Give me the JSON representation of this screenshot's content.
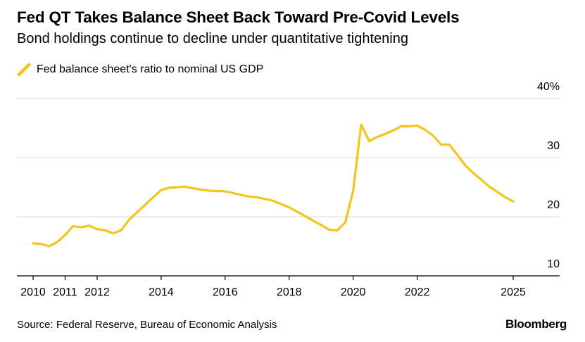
{
  "header": {
    "title": "Fed QT Takes Balance Sheet Back Toward Pre-Covid Levels",
    "subtitle": "Bond holdings continue to decline under quantitative tightening"
  },
  "legend": {
    "label": "Fed balance sheet's ratio to nominal US GDP",
    "color": "#f5c518",
    "icon": "line-swatch-icon"
  },
  "footer": {
    "source": "Source: Federal Reserve, Bureau of Economic Analysis",
    "brand": "Bloomberg"
  },
  "chart_data": {
    "type": "line",
    "title": "Fed QT Takes Balance Sheet Back Toward Pre-Covid Levels",
    "subtitle": "Bond holdings continue to decline under quantitative tightening",
    "xlabel": "",
    "ylabel": "",
    "xlim": [
      2010,
      2025
    ],
    "ylim": [
      10,
      40
    ],
    "y_ticks": [
      {
        "value": 10,
        "label": "10"
      },
      {
        "value": 20,
        "label": "20"
      },
      {
        "value": 30,
        "label": "30"
      },
      {
        "value": 40,
        "label": "40%"
      }
    ],
    "x_ticks": [
      {
        "value": 2010,
        "label": "2010"
      },
      {
        "value": 2011,
        "label": "2011"
      },
      {
        "value": 2012,
        "label": "2012"
      },
      {
        "value": 2014,
        "label": "2014"
      },
      {
        "value": 2016,
        "label": "2016"
      },
      {
        "value": 2018,
        "label": "2018"
      },
      {
        "value": 2020,
        "label": "2020"
      },
      {
        "value": 2022,
        "label": "2022"
      },
      {
        "value": 2025,
        "label": "2025"
      }
    ],
    "grid": true,
    "legend_position": "top-left",
    "y_axis_position": "right",
    "series": [
      {
        "name": "Fed balance sheet's ratio to nominal US GDP",
        "color": "#f5c518",
        "x": [
          2010.0,
          2010.25,
          2010.5,
          2010.75,
          2011.0,
          2011.25,
          2011.5,
          2011.75,
          2012.0,
          2012.25,
          2012.5,
          2012.75,
          2013.0,
          2013.5,
          2013.75,
          2014.0,
          2014.25,
          2014.5,
          2014.75,
          2015.0,
          2015.25,
          2015.5,
          2016.0,
          2016.25,
          2016.5,
          2016.75,
          2017.0,
          2017.5,
          2018.0,
          2018.5,
          2019.0,
          2019.25,
          2019.5,
          2019.75,
          2020.0,
          2020.25,
          2020.5,
          2020.75,
          2021.0,
          2021.25,
          2021.5,
          2021.75,
          2022.0,
          2022.25,
          2022.5,
          2022.75,
          2023.0,
          2023.25,
          2023.5,
          2023.75,
          2024.0,
          2024.25,
          2024.5,
          2024.75,
          2025.0
        ],
        "y": [
          15.5,
          15.4,
          15.0,
          15.7,
          16.9,
          18.4,
          18.2,
          18.5,
          17.9,
          17.7,
          17.2,
          17.7,
          19.5,
          22.0,
          23.3,
          24.5,
          24.9,
          25.0,
          25.1,
          24.8,
          24.6,
          24.4,
          24.3,
          24.0,
          23.7,
          23.4,
          23.3,
          22.7,
          21.6,
          20.1,
          18.6,
          17.8,
          17.7,
          19.0,
          24.4,
          35.6,
          32.8,
          33.5,
          34.0,
          34.6,
          35.3,
          35.3,
          35.4,
          34.7,
          33.7,
          32.2,
          32.2,
          30.5,
          28.7,
          27.4,
          26.3,
          25.1,
          24.2,
          23.3,
          22.6
        ]
      }
    ]
  }
}
